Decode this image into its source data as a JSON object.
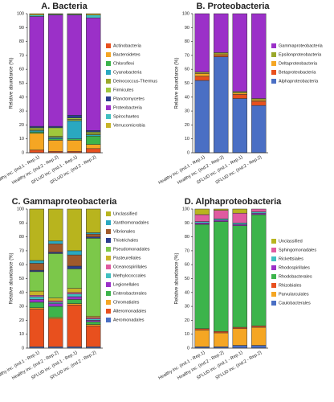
{
  "chart_data": [
    {
      "type": "bar",
      "stacked": true,
      "title": "A. Bacteria",
      "ylabel": "Relative abundance (%)",
      "categories": [
        "Healthy inc. (Ind.1 - Rep.1)",
        "Healthy inc. (Ind.2 - Rep.2)",
        "SFLUD inc. (Ind.1 - Rep.1)",
        "SFLUD inc. (Ind.2 - Rep.2)"
      ],
      "ylim": [
        0,
        100
      ],
      "yticks": [
        0,
        10,
        20,
        30,
        40,
        50,
        60,
        70,
        80,
        90,
        100
      ],
      "legend_order": "forward",
      "series": [
        {
          "name": "Actinobacteria",
          "color": "#e8501e",
          "values": [
            2,
            1,
            1,
            3
          ]
        },
        {
          "name": "Bacteroidetes",
          "color": "#f5a623",
          "values": [
            12,
            8,
            8,
            3
          ]
        },
        {
          "name": "Chloroflexi",
          "color": "#3cb44b",
          "values": [
            1,
            1,
            1,
            6
          ]
        },
        {
          "name": "Cyanobacteria",
          "color": "#2aa8c0",
          "values": [
            1,
            1,
            13,
            1
          ]
        },
        {
          "name": "Deinococcus-Thermus",
          "color": "#9aa82a",
          "values": [
            1,
            1,
            1,
            1
          ]
        },
        {
          "name": "Firmicutes",
          "color": "#a0c83c",
          "values": [
            1,
            6,
            1,
            1
          ]
        },
        {
          "name": "Planctomycetes",
          "color": "#2b3d8f",
          "values": [
            1,
            1,
            2,
            1
          ]
        },
        {
          "name": "Proteobacteria",
          "color": "#9b30c8",
          "values": [
            79,
            80,
            72,
            81
          ]
        },
        {
          "name": "Spirochaetes",
          "color": "#40c0c0",
          "values": [
            1,
            0.5,
            0.5,
            2
          ]
        },
        {
          "name": "Verrucomicrobia",
          "color": "#c8b428",
          "values": [
            1,
            0.5,
            0.5,
            1
          ]
        }
      ]
    },
    {
      "type": "bar",
      "stacked": true,
      "title": "B. Proteobacteria",
      "ylabel": "Relative abundance (%)",
      "categories": [
        "Healthy inc. (Ind.1 - Rep.1)",
        "Healthy inc. (Ind.2 - Rep.2)",
        "SFLUD inc. (Ind.1 - Rep.1)",
        "SFLUD inc. (Ind.2 - Rep.2)"
      ],
      "ylim": [
        0,
        100
      ],
      "yticks": [
        0,
        10,
        20,
        30,
        40,
        50,
        60,
        70,
        80,
        90,
        100
      ],
      "legend_order": "reverse",
      "series": [
        {
          "name": "Alphaproteobacteria",
          "color": "#4a6fc4",
          "values": [
            52,
            69,
            39,
            34
          ]
        },
        {
          "name": "Betaproteobacteria",
          "color": "#e8501e",
          "values": [
            3,
            1,
            3,
            3
          ]
        },
        {
          "name": "Deltaproteobacteria",
          "color": "#f5a623",
          "values": [
            2,
            1,
            1,
            1
          ]
        },
        {
          "name": "Epsilonproteobacteria",
          "color": "#9aa82a",
          "values": [
            1,
            1,
            1,
            1
          ]
        },
        {
          "name": "Gammaproteobacteria",
          "color": "#9b30c8",
          "values": [
            42,
            28,
            56,
            61
          ]
        }
      ]
    },
    {
      "type": "bar",
      "stacked": true,
      "title": "C. Gammaproteobacteria",
      "ylabel": "Relative abundance (%)",
      "categories": [
        "Healthy inc. (Ind.1 - Rep.1)",
        "Healthy inc. (Ind.2 - Rep.2)",
        "SFLUD inc. (Ind.1 - Rep.1)",
        "SFLUD inc. (Ind.2 - Rep.2)"
      ],
      "ylim": [
        0,
        100
      ],
      "yticks": [
        0,
        10,
        20,
        30,
        40,
        50,
        60,
        70,
        80,
        90,
        100
      ],
      "legend_order": "reverse",
      "series": [
        {
          "name": "Aeromonadales",
          "color": "#4a6fc4",
          "values": [
            1,
            1,
            1,
            1
          ]
        },
        {
          "name": "Alteromonadales",
          "color": "#e8501e",
          "values": [
            27,
            20,
            30,
            15
          ]
        },
        {
          "name": "Chromatiales",
          "color": "#f5a623",
          "values": [
            1,
            1,
            1,
            1
          ]
        },
        {
          "name": "Enterobacterales",
          "color": "#3cb44b",
          "values": [
            4,
            8,
            3,
            2
          ]
        },
        {
          "name": "Legionellales",
          "color": "#9b30c8",
          "values": [
            2,
            2,
            2,
            1
          ]
        },
        {
          "name": "Methylococcales",
          "color": "#40c0c0",
          "values": [
            2,
            1,
            2,
            1
          ]
        },
        {
          "name": "Oceanospirillales",
          "color": "#e05aa0",
          "values": [
            1,
            1,
            1,
            1
          ]
        },
        {
          "name": "Pasteurellales",
          "color": "#c8b428",
          "values": [
            3,
            2,
            3,
            1
          ]
        },
        {
          "name": "Pseudomonadales",
          "color": "#7cc84a",
          "values": [
            14,
            32,
            14,
            56
          ]
        },
        {
          "name": "Thiotrichales",
          "color": "#2b3d8f",
          "values": [
            1,
            1,
            2,
            1
          ]
        },
        {
          "name": "Vibrionales",
          "color": "#a05a2c",
          "values": [
            5,
            6,
            8,
            2
          ]
        },
        {
          "name": "Xanthomonadales",
          "color": "#2aa8c0",
          "values": [
            2,
            2,
            3,
            1
          ]
        },
        {
          "name": "Unclassified",
          "color": "#b8b41e",
          "values": [
            37,
            23,
            30,
            17
          ]
        }
      ]
    },
    {
      "type": "bar",
      "stacked": true,
      "title": "D. Alphaproteobacteria",
      "ylabel": "Relative abundance (%)",
      "categories": [
        "Healthy inc. (Ind.1 - Rep.1)",
        "Healthy inc. (Ind.2 - Rep.2)",
        "SFLUD inc. (Ind.1 - Rep.1)",
        "SFLUD inc. (Ind.2 - Rep.2)"
      ],
      "ylim": [
        0,
        100
      ],
      "yticks": [
        0,
        10,
        20,
        30,
        40,
        50,
        60,
        70,
        80,
        90,
        100
      ],
      "legend_order": "reverse",
      "series": [
        {
          "name": "Caulobacterales",
          "color": "#4a6fc4",
          "values": [
            1,
            1,
            2,
            2
          ]
        },
        {
          "name": "Parvularculales",
          "color": "#f5a623",
          "values": [
            12,
            10,
            12,
            13
          ]
        },
        {
          "name": "Rhizobiales",
          "color": "#e8501e",
          "values": [
            1,
            1,
            1,
            1
          ]
        },
        {
          "name": "Rhodobacterales",
          "color": "#3cb44b",
          "values": [
            75,
            79,
            73,
            80
          ]
        },
        {
          "name": "Rhodospirillales",
          "color": "#9b30c8",
          "values": [
            1,
            1,
            1,
            1
          ]
        },
        {
          "name": "Rickettsiales",
          "color": "#40c0c0",
          "values": [
            1,
            1,
            1,
            1
          ]
        },
        {
          "name": "Sphingomonadales",
          "color": "#e05aa0",
          "values": [
            5,
            6,
            7,
            2
          ]
        },
        {
          "name": "Unclassified",
          "color": "#b8b41e",
          "values": [
            4,
            1,
            3,
            0
          ]
        }
      ]
    }
  ]
}
